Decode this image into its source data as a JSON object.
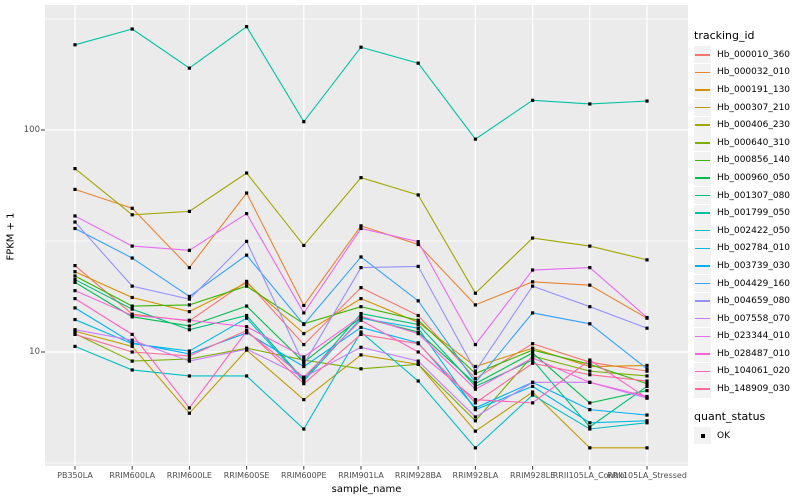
{
  "figure": {
    "y_axis_label": "FPKM + 1",
    "x_axis_label": "sample_name",
    "legend": {
      "tracking_title": "tracking_id",
      "quant_title": "quant_status",
      "quant_items": [
        {
          "label": "OK"
        }
      ]
    },
    "colors": {
      "panel_bg": "#EBEBEB",
      "grid": "#FFFFFF",
      "legend_key_bg": "#F2F2F2",
      "tick_text": "#4D4D4D",
      "marker": "#000000",
      "tick_mark": "#333333"
    }
  },
  "chart_data": {
    "type": "line",
    "title": "",
    "xlabel": "sample_name",
    "ylabel": "FPKM + 1",
    "y_scale": "log10",
    "y_major_ticks": [
      {
        "label": "100",
        "value": 100
      },
      {
        "label": "10",
        "value": 10
      }
    ],
    "y_minor_gridlines": [
      316.2,
      31.62,
      3.162
    ],
    "grid": true,
    "legend_position": "right",
    "point_marker": "black-square",
    "quant_status": "OK",
    "categories": [
      "PB350LA",
      "RRIM600LA",
      "RRIM600LE",
      "RRIM600SE",
      "RRIM600PE",
      "RRIM901LA",
      "RRIM928BA",
      "RRIM928LA",
      "RRIM928LE",
      "RRII105LA_Control",
      "RRII105LA_Stressed"
    ],
    "series": [
      {
        "name": "Hb_000010_360",
        "color": "#F8766D",
        "values": [
          24.5,
          14.8,
          13.8,
          20.8,
          10.8,
          19.5,
          14.6,
          7.6,
          10.9,
          9.0,
          8.2
        ]
      },
      {
        "name": "Hb_000032_010",
        "color": "#EA8331",
        "values": [
          54,
          44.4,
          24,
          52,
          16.2,
          37,
          30.5,
          16.3,
          20.7,
          20,
          14.2
        ]
      },
      {
        "name": "Hb_000191_130",
        "color": "#D89000",
        "values": [
          23,
          17.6,
          15.2,
          20.5,
          12.1,
          17.4,
          13.6,
          8.6,
          10.4,
          8.6,
          8.7
        ]
      },
      {
        "name": "Hb_000307_210",
        "color": "#C09B00",
        "values": [
          12.4,
          10.6,
          5.3,
          10.2,
          6.1,
          9.7,
          8.8,
          4.4,
          6.6,
          3.7,
          3.7
        ]
      },
      {
        "name": "Hb_000406_230",
        "color": "#A3A500",
        "values": [
          67,
          41.5,
          43,
          64,
          30.2,
          61,
          51,
          18.4,
          32.6,
          30,
          26
        ]
      },
      {
        "name": "Hb_000640_310",
        "color": "#7CAE00",
        "values": [
          12.1,
          9.1,
          9.3,
          10.4,
          9.2,
          8.4,
          8.8,
          4.9,
          9.6,
          8.2,
          7.8
        ]
      },
      {
        "name": "Hb_000856_140",
        "color": "#39B600",
        "values": [
          22,
          16.1,
          16.3,
          19.8,
          13.4,
          16.0,
          13.9,
          8.0,
          10.2,
          8.8,
          7.2
        ]
      },
      {
        "name": "Hb_000960_050",
        "color": "#00BB4E",
        "values": [
          20.6,
          14.4,
          13.1,
          16.1,
          9.0,
          14.3,
          12.3,
          7.2,
          9.9,
          5.9,
          6.7
        ]
      },
      {
        "name": "Hb_001307_080",
        "color": "#00BF7D",
        "values": [
          21.2,
          15.6,
          12.6,
          14.6,
          7.5,
          14.9,
          13.3,
          7.0,
          9.2,
          4.6,
          7.0
        ]
      },
      {
        "name": "Hb_001799_050",
        "color": "#00C1A3",
        "values": [
          242,
          285,
          190,
          292,
          109,
          236,
          200,
          91,
          136,
          131,
          135
        ]
      },
      {
        "name": "Hb_002422_050",
        "color": "#00BFC4",
        "values": [
          10.6,
          8.3,
          7.8,
          7.8,
          4.5,
          12.3,
          7.4,
          3.7,
          6.4,
          4.5,
          4.8
        ]
      },
      {
        "name": "Hb_002784_010",
        "color": "#00BAE0",
        "values": [
          14.0,
          10.9,
          10.1,
          14.2,
          7.4,
          14.2,
          12.8,
          5.5,
          7.0,
          4.8,
          4.9
        ]
      },
      {
        "name": "Hb_003739_030",
        "color": "#00B0F6",
        "values": [
          15.8,
          11.0,
          9.8,
          12.2,
          8.6,
          12.9,
          11.0,
          5.6,
          7.3,
          5.5,
          5.2
        ]
      },
      {
        "name": "Hb_004429_160",
        "color": "#35A2FF",
        "values": [
          36,
          26.5,
          17.8,
          27.3,
          13.3,
          26.8,
          17.0,
          7.3,
          15.0,
          13.4,
          8.4
        ]
      },
      {
        "name": "Hb_004659_080",
        "color": "#9590FF",
        "values": [
          38.5,
          19.8,
          17.3,
          31.5,
          8.8,
          24,
          24.3,
          8.2,
          19.8,
          16,
          12.8
        ]
      },
      {
        "name": "Hb_007558_070",
        "color": "#C77CFF",
        "values": [
          12.6,
          11.3,
          9.1,
          10.3,
          7.7,
          10.5,
          9.1,
          5.1,
          7.3,
          7.3,
          6.2
        ]
      },
      {
        "name": "Hb_023344_010",
        "color": "#E76BF3",
        "values": [
          41,
          30,
          28.7,
          42,
          15.0,
          36,
          31.4,
          10.8,
          23.4,
          24,
          14.3
        ]
      },
      {
        "name": "Hb_028487_010",
        "color": "#FA62DB",
        "values": [
          18.9,
          14.6,
          13.9,
          13.0,
          9.5,
          14.5,
          12.1,
          6.8,
          9.4,
          7.3,
          6.3
        ]
      },
      {
        "name": "Hb_104061_020",
        "color": "#FF62BC",
        "values": [
          17.4,
          12.0,
          5.6,
          12.4,
          7.7,
          13.9,
          10.0,
          6.1,
          5.9,
          9.2,
          6.2
        ]
      },
      {
        "name": "Hb_148909_030",
        "color": "#FF6A98",
        "values": [
          12.0,
          10.0,
          9.6,
          12.5,
          7.2,
          12.0,
          10.9,
          5.9,
          8.9,
          7.9,
          7.4
        ]
      }
    ]
  }
}
